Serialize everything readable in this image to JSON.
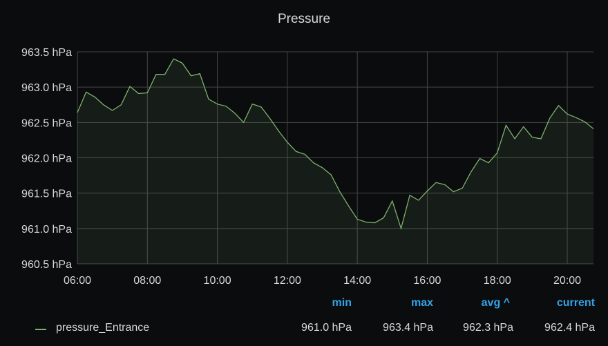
{
  "panel": {
    "title": "Pressure"
  },
  "legend": {
    "headers": {
      "min": "min",
      "max": "max",
      "avg": "avg ^",
      "current": "current"
    },
    "series": [
      {
        "name": "pressure_Entrance",
        "min": "961.0 hPa",
        "max": "963.4 hPa",
        "avg": "962.3 hPa",
        "current": "962.4 hPa"
      }
    ]
  },
  "colors": {
    "line": "#7eb26d",
    "grid": "#464646",
    "axis_text": "#d8d9da",
    "legend_header": "#33a2e5"
  },
  "chart_data": {
    "type": "area",
    "title": "Pressure",
    "y_unit": "hPa",
    "ylim": [
      960.5,
      963.5
    ],
    "y_ticks": [
      "960.5 hPa",
      "961.0 hPa",
      "961.5 hPa",
      "962.0 hPa",
      "962.5 hPa",
      "963.0 hPa",
      "963.5 hPa"
    ],
    "y_tick_values": [
      960.5,
      961.0,
      961.5,
      962.0,
      962.5,
      963.0,
      963.5
    ],
    "x_ticks": [
      "06:00",
      "08:00",
      "10:00",
      "12:00",
      "14:00",
      "16:00",
      "18:00",
      "20:00"
    ],
    "x_tick_hours": [
      6,
      8,
      10,
      12,
      14,
      16,
      18,
      20
    ],
    "xlim_hours": [
      6.0,
      20.75
    ],
    "grid": true,
    "legend": "bottom",
    "series": [
      {
        "name": "pressure_Entrance",
        "x_hours": [
          6.0,
          6.25,
          6.5,
          6.75,
          7.0,
          7.25,
          7.5,
          7.75,
          8.0,
          8.25,
          8.5,
          8.75,
          9.0,
          9.25,
          9.5,
          9.75,
          10.0,
          10.25,
          10.5,
          10.75,
          11.0,
          11.25,
          11.5,
          11.75,
          12.0,
          12.25,
          12.5,
          12.75,
          13.0,
          13.25,
          13.5,
          13.75,
          14.0,
          14.25,
          14.5,
          14.75,
          15.0,
          15.25,
          15.5,
          15.75,
          16.0,
          16.25,
          16.5,
          16.75,
          17.0,
          17.25,
          17.5,
          17.75,
          18.0,
          18.25,
          18.5,
          18.75,
          19.0,
          19.25,
          19.5,
          19.75,
          20.0,
          20.25,
          20.5,
          20.75
        ],
        "values": [
          962.64,
          962.93,
          962.86,
          962.75,
          962.67,
          962.75,
          963.01,
          962.91,
          962.92,
          963.18,
          963.18,
          963.4,
          963.34,
          963.16,
          963.19,
          962.83,
          962.76,
          962.73,
          962.63,
          962.5,
          962.76,
          962.72,
          962.56,
          962.38,
          962.22,
          962.09,
          962.05,
          961.93,
          961.86,
          961.76,
          961.52,
          961.32,
          961.13,
          961.09,
          961.08,
          961.15,
          961.39,
          961.0,
          961.47,
          961.4,
          961.53,
          961.65,
          961.62,
          961.52,
          961.57,
          961.8,
          961.99,
          961.93,
          962.07,
          962.46,
          962.27,
          962.44,
          962.29,
          962.27,
          962.56,
          962.74,
          962.62,
          962.57,
          962.51,
          962.41
        ]
      }
    ]
  }
}
